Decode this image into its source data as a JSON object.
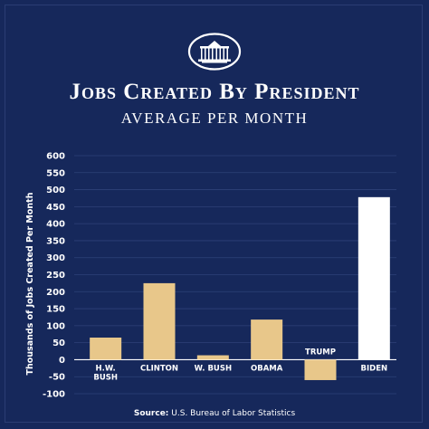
{
  "header": {
    "title": "Jobs Created By President",
    "subtitle": "AVERAGE PER MONTH"
  },
  "footer": {
    "source_label": "Source:",
    "source_text": "U.S. Bureau of Labor Statistics"
  },
  "colors": {
    "background": "#16285b",
    "bar_default": "#e8c78a",
    "bar_highlight": "#ffffff",
    "grid": "#2e4178",
    "text": "#ffffff"
  },
  "chart_data": {
    "type": "bar",
    "ylabel": "Thousands of Jobs Created Per Month",
    "ylim": [
      -100,
      600
    ],
    "yticks": [
      -100,
      -50,
      0,
      50,
      100,
      150,
      200,
      250,
      300,
      350,
      400,
      450,
      500,
      550,
      600
    ],
    "grid": true,
    "categories": [
      "H.W. Bush",
      "Clinton",
      "W. Bush",
      "Obama",
      "Trump",
      "Biden"
    ],
    "category_labels": [
      [
        "H.W.",
        "BUSH"
      ],
      [
        "CLINTON"
      ],
      [
        "W. BUSH"
      ],
      [
        "OBAMA"
      ],
      [
        "TRUMP"
      ],
      [
        "BIDEN"
      ]
    ],
    "values": [
      65,
      225,
      13,
      118,
      -60,
      478
    ],
    "highlight": "Biden"
  }
}
